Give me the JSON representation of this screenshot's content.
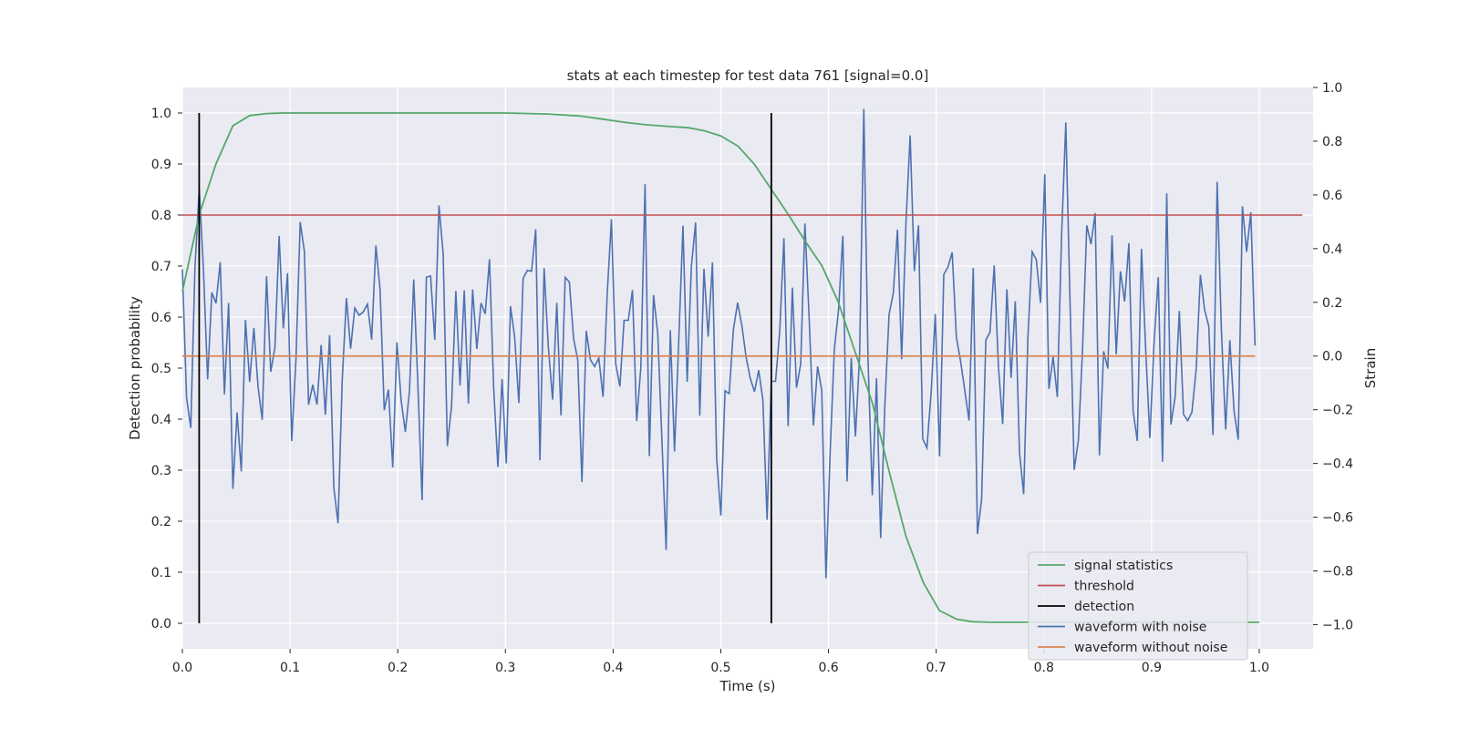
{
  "chart_data": {
    "type": "line",
    "title": "stats at each timestep for test data 761 [signal=0.0]",
    "xlabel": "Time (s)",
    "ylabel": "Detection probability",
    "y2label": "Strain",
    "xlim": [
      0.0,
      1.05
    ],
    "ylim": [
      -0.05,
      1.05
    ],
    "y2lim": [
      -1.09,
      1.0
    ],
    "xticks": [
      "0.0",
      "0.1",
      "0.2",
      "0.3",
      "0.4",
      "0.5",
      "0.6",
      "0.7",
      "0.8",
      "0.9",
      "1.0"
    ],
    "yticks": [
      "0.0",
      "0.1",
      "0.2",
      "0.3",
      "0.4",
      "0.5",
      "0.6",
      "0.7",
      "0.8",
      "0.9",
      "1.0"
    ],
    "y2ticks": [
      "−1.0",
      "−0.8",
      "−0.6",
      "−0.4",
      "−0.2",
      "0.0",
      "0.2",
      "0.4",
      "0.6",
      "0.8",
      "1.0"
    ],
    "grid": true,
    "background": "#eaeaf2",
    "legend_position": "lower-right",
    "series": [
      {
        "name": "signal statistics",
        "axis": "left",
        "color": "#55a868",
        "x": [
          0.0,
          0.0156,
          0.0312,
          0.0469,
          0.0625,
          0.0781,
          0.0938,
          0.1094,
          0.125,
          0.1406,
          0.1562,
          0.2,
          0.25,
          0.3,
          0.34,
          0.37,
          0.39,
          0.41,
          0.43,
          0.45,
          0.47,
          0.485,
          0.5,
          0.516,
          0.531,
          0.547,
          0.563,
          0.578,
          0.594,
          0.609,
          0.625,
          0.641,
          0.656,
          0.672,
          0.688,
          0.703,
          0.719,
          0.734,
          0.75,
          0.8,
          0.85,
          0.9,
          0.95,
          1.0
        ],
        "values": [
          0.65,
          0.8,
          0.9,
          0.975,
          0.995,
          0.999,
          1.0,
          1.0,
          1.0,
          1.0,
          1.0,
          1.0,
          1.0,
          1.0,
          0.998,
          0.994,
          0.988,
          0.982,
          0.977,
          0.974,
          0.971,
          0.965,
          0.955,
          0.935,
          0.9,
          0.85,
          0.8,
          0.75,
          0.7,
          0.63,
          0.53,
          0.43,
          0.3,
          0.17,
          0.08,
          0.025,
          0.008,
          0.003,
          0.002,
          0.002,
          0.002,
          0.002,
          0.002,
          0.002
        ]
      },
      {
        "name": "threshold",
        "axis": "left",
        "color": "#c44e52",
        "x": [
          0.0,
          1.04
        ],
        "values": [
          0.8,
          0.8
        ]
      },
      {
        "name": "detection",
        "axis": "left",
        "color": "#000000",
        "x": [
          0.0156,
          0.5469
        ],
        "values": [
          1.0,
          1.0
        ]
      },
      {
        "name": "waveform with noise",
        "axis": "right",
        "color": "#4c72b0",
        "x_range": [
          0.0,
          0.9961
        ],
        "samples": 256
      },
      {
        "name": "waveform without noise",
        "axis": "right",
        "color": "#dd8452",
        "x": [
          0.0,
          0.9961
        ],
        "values": [
          0.0,
          0.0
        ]
      }
    ]
  }
}
